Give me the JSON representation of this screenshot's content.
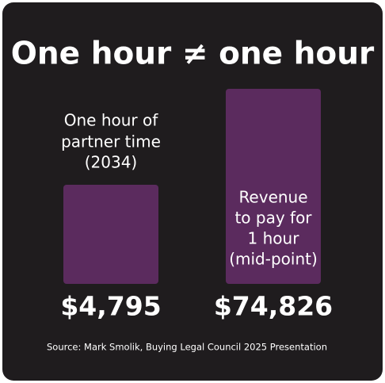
{
  "title": "One hour ≠ one hour",
  "columns": [
    {
      "label_lines": [
        "One hour of",
        "partner time",
        "(2034)"
      ],
      "value": "$4,795"
    },
    {
      "label_lines": [
        "Revenue",
        "to pay for",
        "1 hour",
        "(mid-point)"
      ],
      "value": "$74,826"
    }
  ],
  "source": "Source: Mark Smolik, Buying Legal Council 2025 Presentation"
}
